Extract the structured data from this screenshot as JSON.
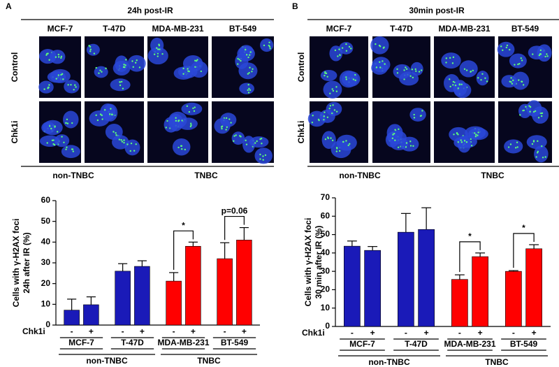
{
  "panels": [
    {
      "label": "A",
      "title": "24h post-IR",
      "columns": [
        "MCF-7",
        "T-47D",
        "MDA-MB-231",
        "BT-549"
      ],
      "rows": [
        "Control",
        "Chk1i"
      ],
      "groups": [
        "non-TNBC",
        "TNBC"
      ]
    },
    {
      "label": "B",
      "title": "30min post-IR",
      "columns": [
        "MCF-7",
        "T-47D",
        "MDA-MB-231",
        "BT-549"
      ],
      "rows": [
        "Control",
        "Chk1i"
      ],
      "groups": [
        "non-TNBC",
        "TNBC"
      ]
    }
  ],
  "chart_data": [
    {
      "type": "bar",
      "ylabel": [
        "Cells with γ-H2AX foci",
        "24h after IR (%)"
      ],
      "treatment_label": "Chk1i",
      "categories": [
        "-",
        "+",
        "-",
        "+",
        "-",
        "+",
        "-",
        "+"
      ],
      "values": [
        7.2,
        9.8,
        26,
        28.3,
        21.2,
        38,
        32,
        41
      ],
      "errors": [
        5.3,
        3.8,
        3.6,
        2.7,
        4.1,
        2,
        7.7,
        6
      ],
      "colors": [
        "#1a1ab8",
        "#1a1ab8",
        "#1a1ab8",
        "#1a1ab8",
        "#ff0000",
        "#ff0000",
        "#ff0000",
        "#ff0000"
      ],
      "cell_lines": [
        "MCF-7",
        "T-47D",
        "MDA-MB-231",
        "BT-549"
      ],
      "annotations": [
        null,
        null,
        "*",
        "p=0.06"
      ],
      "groups": [
        "non-TNBC",
        "TNBC"
      ],
      "ylim": [
        0,
        60
      ],
      "yticks": [
        0,
        10,
        20,
        30,
        40,
        50,
        60
      ]
    },
    {
      "type": "bar",
      "ylabel": [
        "Cells with γ-H2AX foci",
        "30 min after IR (%)"
      ],
      "treatment_label": "Chk1i",
      "categories": [
        "-",
        "+",
        "-",
        "+",
        "-",
        "+",
        "-",
        "+"
      ],
      "values": [
        43.7,
        41.4,
        51.3,
        52.8,
        25.6,
        38,
        30,
        42.3
      ],
      "errors": [
        2.8,
        2.1,
        10.2,
        11.8,
        2.5,
        2,
        0.4,
        2.2
      ],
      "colors": [
        "#1a1ab8",
        "#1a1ab8",
        "#1a1ab8",
        "#1a1ab8",
        "#ff0000",
        "#ff0000",
        "#ff0000",
        "#ff0000"
      ],
      "cell_lines": [
        "MCF-7",
        "T-47D",
        "MDA-MB-231",
        "BT-549"
      ],
      "annotations": [
        null,
        null,
        "*",
        "*"
      ],
      "groups": [
        "non-TNBC",
        "TNBC"
      ],
      "ylim": [
        0,
        70
      ],
      "yticks": [
        0,
        10,
        20,
        30,
        40,
        50,
        60,
        70
      ]
    }
  ]
}
